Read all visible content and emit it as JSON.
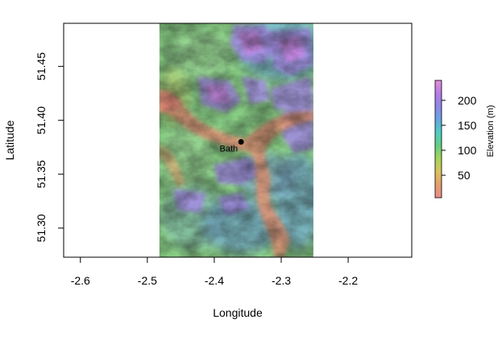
{
  "chart_data": {
    "type": "heatmap",
    "title": "",
    "xlabel": "Longitude",
    "ylabel": "Latitude",
    "xlim": [
      -2.625,
      -2.105
    ],
    "ylim": [
      51.273,
      51.49
    ],
    "x_ticks": [
      "-2.6",
      "-2.5",
      "-2.4",
      "-2.3",
      "-2.2"
    ],
    "x_tick_values": [
      -2.6,
      -2.5,
      -2.4,
      -2.3,
      -2.2
    ],
    "y_ticks": [
      "51.30",
      "51.35",
      "51.40",
      "51.45"
    ],
    "y_tick_values": [
      51.3,
      51.35,
      51.4,
      51.45
    ],
    "raster_extent": {
      "x": [
        -2.482,
        -2.252
      ],
      "y": [
        51.273,
        51.49
      ]
    },
    "raster_description": "Shaded-relief elevation raster with river valley running west to east through Bath",
    "point": {
      "label": "Bath",
      "lon": -2.36,
      "lat": 51.38
    },
    "colorbar": {
      "title": "Elevation (m)",
      "ticks": [
        "50",
        "100",
        "150",
        "200"
      ],
      "tick_values": [
        50,
        100,
        150,
        200
      ],
      "range": [
        5,
        240
      ],
      "colors": [
        "#e98d8d",
        "#e3a06a",
        "#d8c25e",
        "#a8d456",
        "#64cf82",
        "#4ecdc2",
        "#66a6e3",
        "#8f86e8",
        "#b67ce6",
        "#e58ed8"
      ]
    }
  }
}
